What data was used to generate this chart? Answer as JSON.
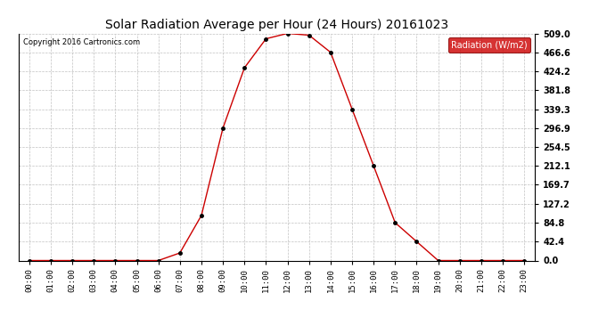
{
  "title": "Solar Radiation Average per Hour (24 Hours) 20161023",
  "copyright": "Copyright 2016 Cartronics.com",
  "legend_label": "Radiation (W/m2)",
  "hours": [
    "00:00",
    "01:00",
    "02:00",
    "03:00",
    "04:00",
    "05:00",
    "06:00",
    "07:00",
    "08:00",
    "09:00",
    "10:00",
    "11:00",
    "12:00",
    "13:00",
    "14:00",
    "15:00",
    "16:00",
    "17:00",
    "18:00",
    "19:00",
    "20:00",
    "21:00",
    "22:00",
    "23:00"
  ],
  "values": [
    0.0,
    0.0,
    0.0,
    0.0,
    0.0,
    0.0,
    0.0,
    17.0,
    101.0,
    296.9,
    432.0,
    497.0,
    509.0,
    505.0,
    466.6,
    339.3,
    212.1,
    84.8,
    42.4,
    0.0,
    0.0,
    0.0,
    0.0,
    0.0
  ],
  "yticks": [
    0.0,
    42.4,
    84.8,
    127.2,
    169.7,
    212.1,
    254.5,
    296.9,
    339.3,
    381.8,
    424.2,
    466.6,
    509.0
  ],
  "ymax": 509.0,
  "ymin": 0.0,
  "line_color": "#cc0000",
  "marker_color": "#000000",
  "bg_color": "#ffffff",
  "grid_color": "#bbbbbb",
  "legend_bg": "#cc0000",
  "legend_text_color": "#ffffff",
  "title_color": "#000000",
  "copyright_color": "#000000",
  "axis_label_color": "#000000",
  "figwidth": 6.9,
  "figheight": 3.75,
  "dpi": 100
}
